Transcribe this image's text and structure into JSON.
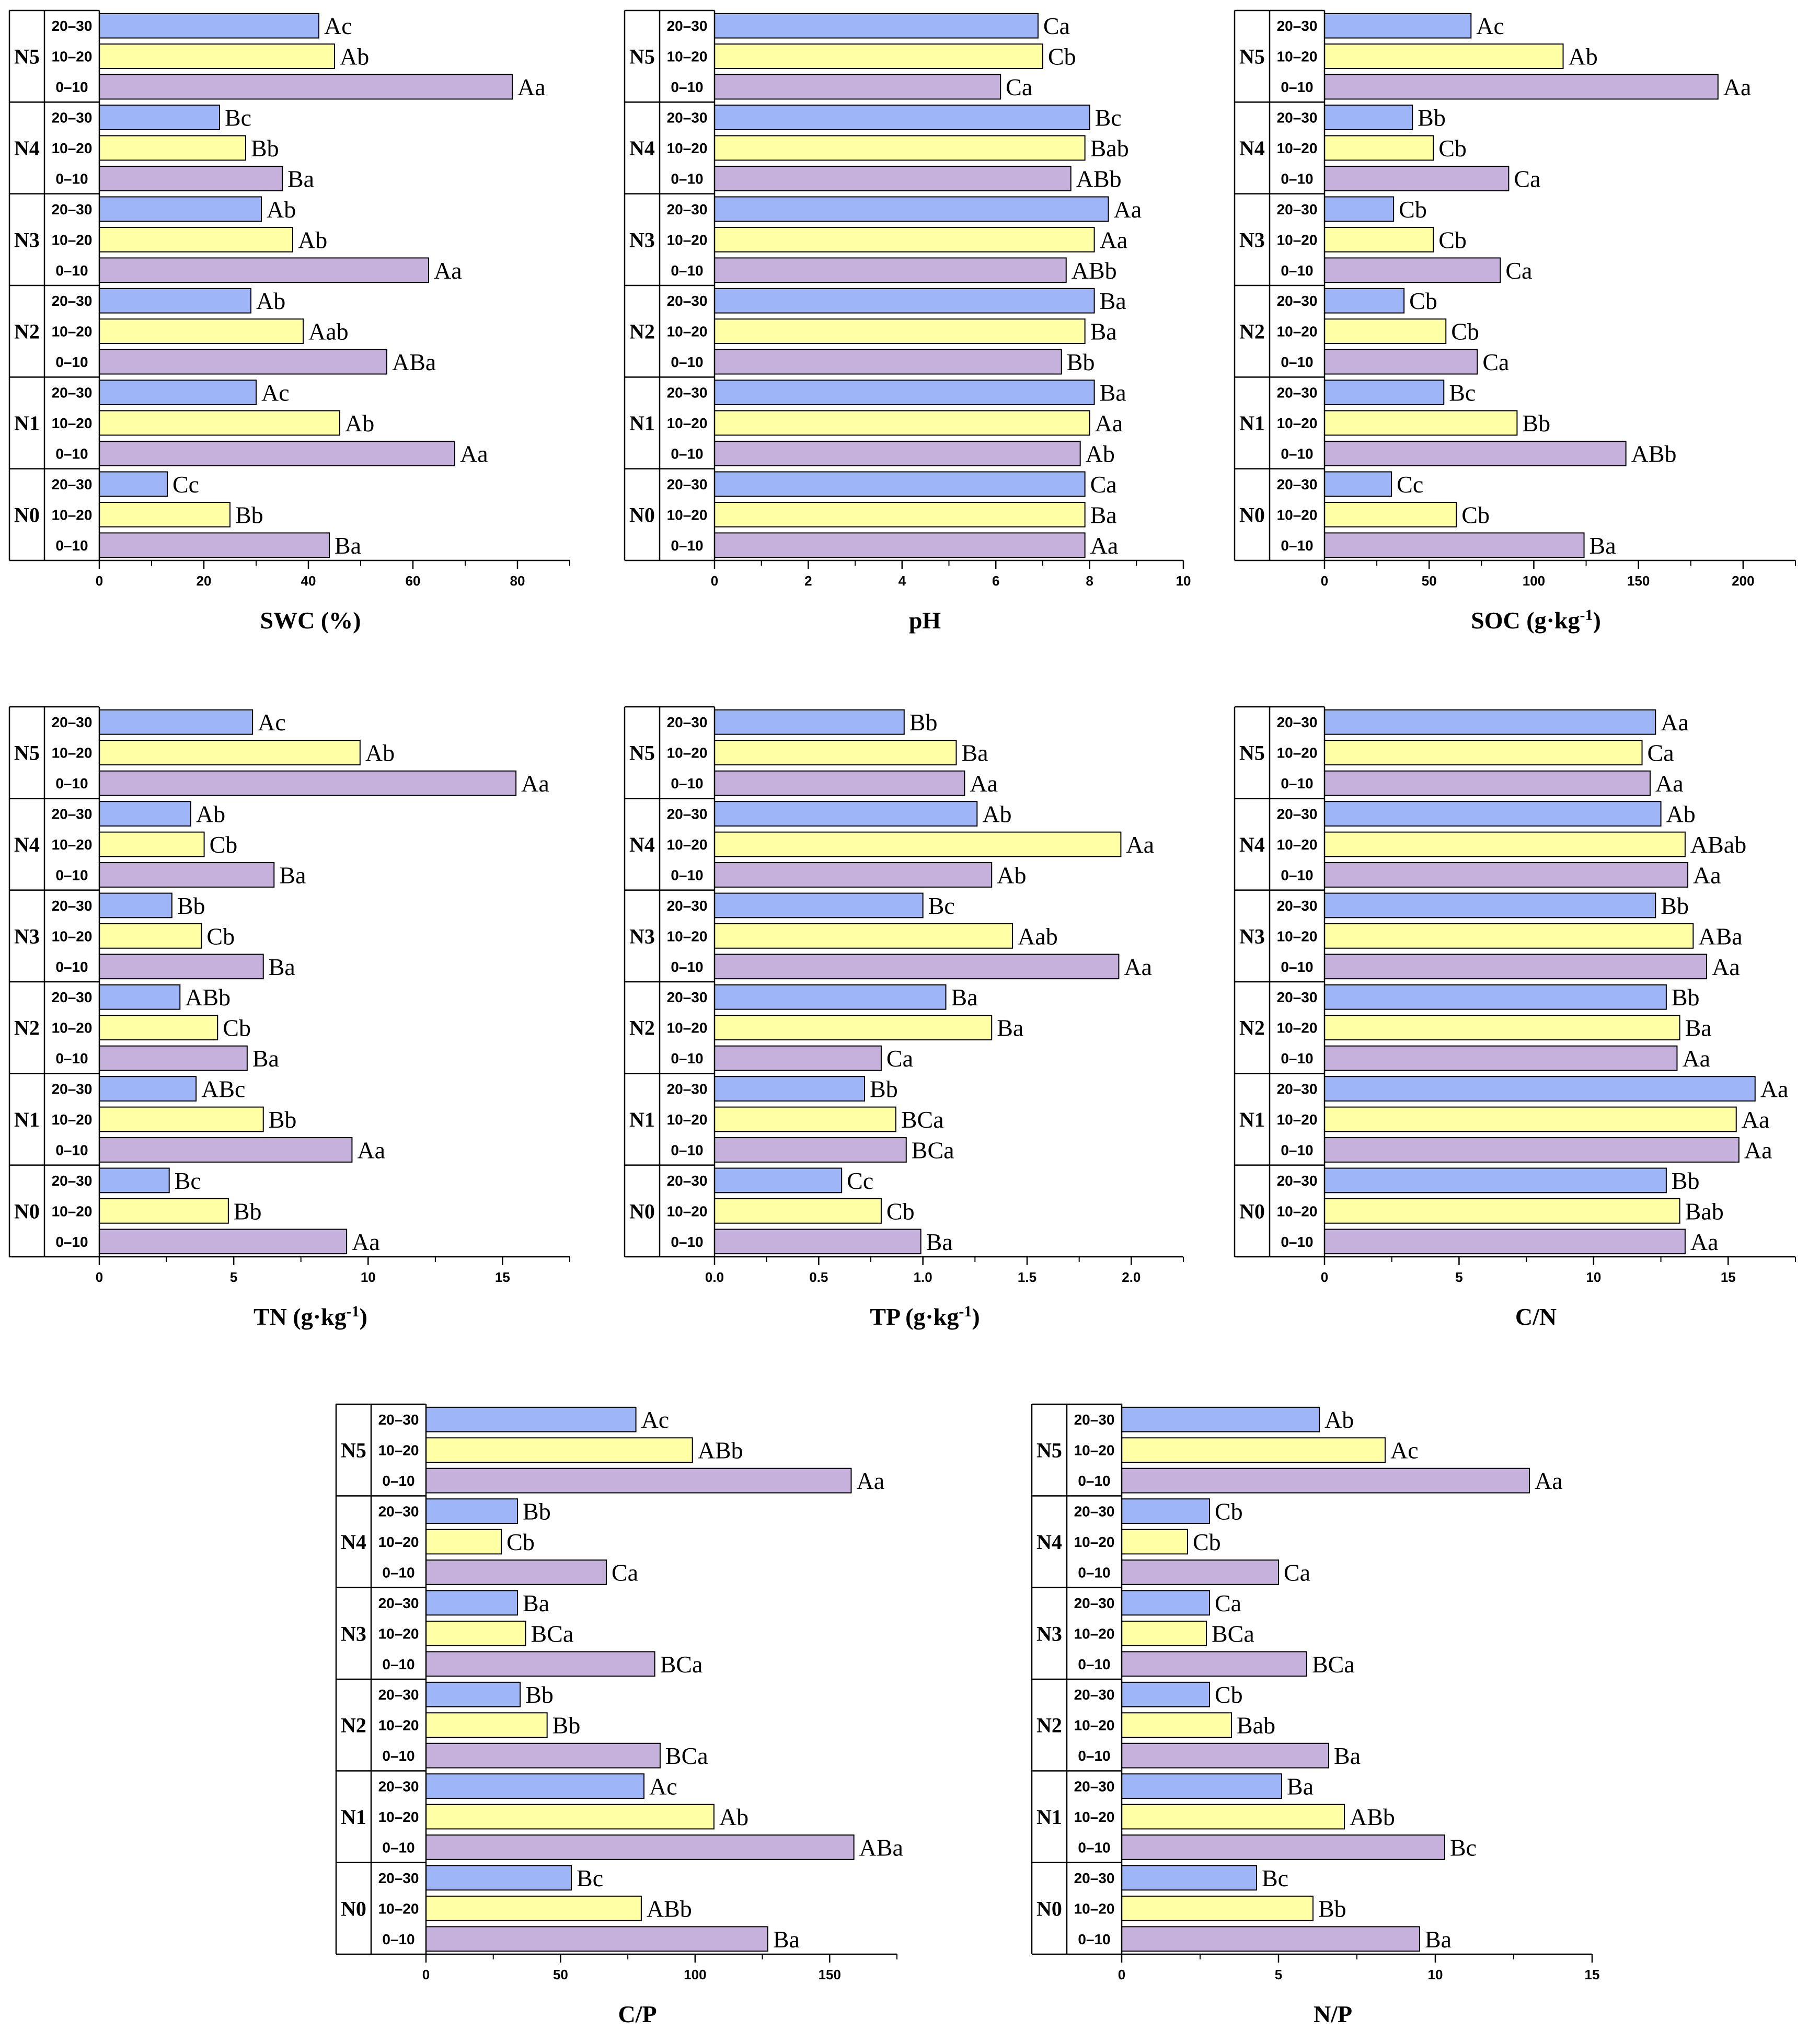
{
  "colors": {
    "d20_30": "#9EB6F7",
    "d10_20": "#FFFFA6",
    "d0_10": "#C5B1DB",
    "stroke": "#000000"
  },
  "treatments": [
    "N5",
    "N4",
    "N3",
    "N2",
    "N1",
    "N0"
  ],
  "depths": [
    "20–30",
    "10–20",
    "0–10"
  ],
  "chart_data": [
    {
      "type": "bar",
      "title": "",
      "xlabel": "SWC (%)",
      "xlabel_sup": "",
      "xlabel_after": "",
      "xlim": [
        0,
        90
      ],
      "ticks": [
        0,
        20,
        40,
        60,
        80
      ],
      "series": [
        {
          "treatment": "N5",
          "values": [
            42,
            45,
            79
          ],
          "letters": [
            "Ac",
            "Ab",
            "Aa"
          ]
        },
        {
          "treatment": "N4",
          "values": [
            23,
            28,
            35
          ],
          "letters": [
            "Bc",
            "Bb",
            "Ba"
          ]
        },
        {
          "treatment": "N3",
          "values": [
            31,
            37,
            63
          ],
          "letters": [
            "Ab",
            "Ab",
            "Aa"
          ]
        },
        {
          "treatment": "N2",
          "values": [
            29,
            39,
            55
          ],
          "letters": [
            "Ab",
            "Aab",
            "ABa"
          ]
        },
        {
          "treatment": "N1",
          "values": [
            30,
            46,
            68
          ],
          "letters": [
            "Ac",
            "Ab",
            "Aa"
          ]
        },
        {
          "treatment": "N0",
          "values": [
            13,
            25,
            44
          ],
          "letters": [
            "Cc",
            "Bb",
            "Ba"
          ]
        }
      ]
    },
    {
      "type": "bar",
      "title": "",
      "xlabel": "pH",
      "xlabel_sup": "",
      "xlabel_after": "",
      "xlim": [
        0,
        10
      ],
      "ticks": [
        0,
        2,
        4,
        6,
        8,
        10
      ],
      "series": [
        {
          "treatment": "N5",
          "values": [
            6.9,
            7.0,
            6.1
          ],
          "letters": [
            "Ca",
            "Cb",
            "Ca"
          ]
        },
        {
          "treatment": "N4",
          "values": [
            8.0,
            7.9,
            7.6
          ],
          "letters": [
            "Bc",
            "Bab",
            "ABb"
          ]
        },
        {
          "treatment": "N3",
          "values": [
            8.4,
            8.1,
            7.5
          ],
          "letters": [
            "Aa",
            "Aa",
            "ABb"
          ]
        },
        {
          "treatment": "N2",
          "values": [
            8.1,
            7.9,
            7.4
          ],
          "letters": [
            "Ba",
            "Ba",
            "Bb"
          ]
        },
        {
          "treatment": "N1",
          "values": [
            8.1,
            8.0,
            7.8
          ],
          "letters": [
            "Ba",
            "Aa",
            "Ab"
          ]
        },
        {
          "treatment": "N0",
          "values": [
            7.9,
            7.9,
            7.9
          ],
          "letters": [
            "Ca",
            "Ba",
            "Aa"
          ]
        }
      ]
    },
    {
      "type": "bar",
      "title": "",
      "xlabel": "SOC (g·kg",
      "xlabel_sup": "-1",
      "xlabel_after": ")",
      "xlim": [
        0,
        225
      ],
      "ticks": [
        0,
        50,
        100,
        150,
        200
      ],
      "series": [
        {
          "treatment": "N5",
          "values": [
            70,
            114,
            188
          ],
          "letters": [
            "Ac",
            "Ab",
            "Aa"
          ]
        },
        {
          "treatment": "N4",
          "values": [
            42,
            52,
            88
          ],
          "letters": [
            "Bb",
            "Cb",
            "Ca"
          ]
        },
        {
          "treatment": "N3",
          "values": [
            33,
            52,
            84
          ],
          "letters": [
            "Cb",
            "Cb",
            "Ca"
          ]
        },
        {
          "treatment": "N2",
          "values": [
            38,
            58,
            73
          ],
          "letters": [
            "Cb",
            "Cb",
            "Ca"
          ]
        },
        {
          "treatment": "N1",
          "values": [
            57,
            92,
            144
          ],
          "letters": [
            "Bc",
            "Bb",
            "ABb"
          ]
        },
        {
          "treatment": "N0",
          "values": [
            32,
            63,
            124
          ],
          "letters": [
            "Cc",
            "Cb",
            "Ba"
          ]
        }
      ]
    },
    {
      "type": "bar",
      "title": "",
      "xlabel": "TN (g·kg",
      "xlabel_sup": "-1",
      "xlabel_after": ")",
      "xlim": [
        0,
        17.5
      ],
      "ticks": [
        0,
        5,
        10,
        15
      ],
      "series": [
        {
          "treatment": "N5",
          "values": [
            5.7,
            9.7,
            15.5
          ],
          "letters": [
            "Ac",
            "Ab",
            "Aa"
          ]
        },
        {
          "treatment": "N4",
          "values": [
            3.4,
            3.9,
            6.5
          ],
          "letters": [
            "Ab",
            "Cb",
            "Ba"
          ]
        },
        {
          "treatment": "N3",
          "values": [
            2.7,
            3.8,
            6.1
          ],
          "letters": [
            "Bb",
            "Cb",
            "Ba"
          ]
        },
        {
          "treatment": "N2",
          "values": [
            3.0,
            4.4,
            5.5
          ],
          "letters": [
            "ABb",
            "Cb",
            "Ba"
          ]
        },
        {
          "treatment": "N1",
          "values": [
            3.6,
            6.1,
            9.4
          ],
          "letters": [
            "ABc",
            "Bb",
            "Aa"
          ]
        },
        {
          "treatment": "N0",
          "values": [
            2.6,
            4.8,
            9.2
          ],
          "letters": [
            "Bc",
            "Bb",
            "Aa"
          ]
        }
      ]
    },
    {
      "type": "bar",
      "title": "",
      "xlabel": "TP (g·kg",
      "xlabel_sup": "-1",
      "xlabel_after": ")",
      "xlim": [
        0,
        2.25
      ],
      "ticks": [
        0.0,
        0.5,
        1.0,
        1.5,
        2.0
      ],
      "tick_decimals": 1,
      "series": [
        {
          "treatment": "N5",
          "values": [
            0.91,
            1.16,
            1.2
          ],
          "letters": [
            "Bb",
            "Ba",
            "Aa"
          ]
        },
        {
          "treatment": "N4",
          "values": [
            1.26,
            1.95,
            1.33
          ],
          "letters": [
            "Ab",
            "Aa",
            "Ab"
          ]
        },
        {
          "treatment": "N3",
          "values": [
            1.0,
            1.43,
            1.94
          ],
          "letters": [
            "Bc",
            "Aab",
            "Aa"
          ]
        },
        {
          "treatment": "N2",
          "values": [
            1.11,
            1.33,
            0.8
          ],
          "letters": [
            "Ba",
            "Ba",
            "Ca"
          ]
        },
        {
          "treatment": "N1",
          "values": [
            0.72,
            0.87,
            0.92
          ],
          "letters": [
            "Bb",
            "BCa",
            "BCa"
          ]
        },
        {
          "treatment": "N0",
          "values": [
            0.61,
            0.8,
            0.99
          ],
          "letters": [
            "Cc",
            "Cb",
            "Ba"
          ]
        }
      ]
    },
    {
      "type": "bar",
      "title": "",
      "xlabel": "C/N",
      "xlabel_sup": "",
      "xlabel_after": "",
      "xlim": [
        0,
        17.5
      ],
      "ticks": [
        0,
        5,
        10,
        15
      ],
      "series": [
        {
          "treatment": "N5",
          "values": [
            12.3,
            11.8,
            12.1
          ],
          "letters": [
            "Aa",
            "Ca",
            "Aa"
          ]
        },
        {
          "treatment": "N4",
          "values": [
            12.5,
            13.4,
            13.5
          ],
          "letters": [
            "Ab",
            "ABab",
            "Aa"
          ]
        },
        {
          "treatment": "N3",
          "values": [
            12.3,
            13.7,
            14.2
          ],
          "letters": [
            "Bb",
            "ABa",
            "Aa"
          ]
        },
        {
          "treatment": "N2",
          "values": [
            12.7,
            13.2,
            13.1
          ],
          "letters": [
            "Bb",
            "Ba",
            "Aa"
          ]
        },
        {
          "treatment": "N1",
          "values": [
            16.0,
            15.3,
            15.4
          ],
          "letters": [
            "Aa",
            "Aa",
            "Aa"
          ]
        },
        {
          "treatment": "N0",
          "values": [
            12.7,
            13.2,
            13.4
          ],
          "letters": [
            "Bb",
            "Bab",
            "Aa"
          ]
        }
      ]
    },
    {
      "type": "bar",
      "title": "",
      "xlabel": "C/P",
      "xlabel_sup": "",
      "xlabel_after": "",
      "xlim": [
        0,
        175
      ],
      "ticks": [
        0,
        50,
        100,
        150
      ],
      "series": [
        {
          "treatment": "N5",
          "values": [
            78,
            99,
            158
          ],
          "letters": [
            "Ac",
            "ABb",
            "Aa"
          ]
        },
        {
          "treatment": "N4",
          "values": [
            34,
            28,
            67
          ],
          "letters": [
            "Bb",
            "Cb",
            "Ca"
          ]
        },
        {
          "treatment": "N3",
          "values": [
            34,
            37,
            85
          ],
          "letters": [
            "Ba",
            "BCa",
            "BCa"
          ]
        },
        {
          "treatment": "N2",
          "values": [
            35,
            45,
            87
          ],
          "letters": [
            "Bb",
            "Bb",
            "BCa"
          ]
        },
        {
          "treatment": "N1",
          "values": [
            81,
            107,
            159
          ],
          "letters": [
            "Ac",
            "Ab",
            "ABa"
          ]
        },
        {
          "treatment": "N0",
          "values": [
            54,
            80,
            127
          ],
          "letters": [
            "Bc",
            "ABb",
            "Ba"
          ]
        }
      ]
    },
    {
      "type": "bar",
      "title": "",
      "xlabel": "N/P",
      "xlabel_sup": "",
      "xlabel_after": "",
      "xlim": [
        0,
        15
      ],
      "ticks": [
        0,
        5,
        10,
        15
      ],
      "series": [
        {
          "treatment": "N5",
          "values": [
            6.3,
            8.4,
            13.0
          ],
          "letters": [
            "Ab",
            "Ac",
            "Aa"
          ]
        },
        {
          "treatment": "N4",
          "values": [
            2.8,
            2.1,
            5.0
          ],
          "letters": [
            "Cb",
            "Cb",
            "Ca"
          ]
        },
        {
          "treatment": "N3",
          "values": [
            2.8,
            2.7,
            5.9
          ],
          "letters": [
            "Ca",
            "BCa",
            "BCa"
          ]
        },
        {
          "treatment": "N2",
          "values": [
            2.8,
            3.5,
            6.6
          ],
          "letters": [
            "Cb",
            "Bab",
            "Ba"
          ]
        },
        {
          "treatment": "N1",
          "values": [
            5.1,
            7.1,
            10.3
          ],
          "letters": [
            "Ba",
            "ABb",
            "Bc"
          ]
        },
        {
          "treatment": "N0",
          "values": [
            4.3,
            6.1,
            9.5
          ],
          "letters": [
            "Bc",
            "Bb",
            "Ba"
          ]
        }
      ]
    }
  ]
}
